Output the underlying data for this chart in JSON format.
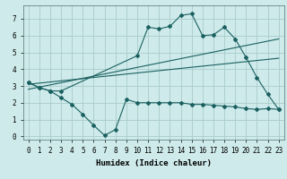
{
  "xlabel": "Humidex (Indice chaleur)",
  "background_color": "#ceeaea",
  "grid_color": "#aacccc",
  "line_color": "#1a6060",
  "xlim": [
    -0.5,
    23.5
  ],
  "ylim": [
    -0.2,
    7.8
  ],
  "xtick_labels": [
    "0",
    "1",
    "2",
    "3",
    "4",
    "5",
    "6",
    "7",
    "8",
    "9",
    "10",
    "11",
    "12",
    "13",
    "14",
    "15",
    "16",
    "17",
    "18",
    "19",
    "20",
    "21",
    "22",
    "23"
  ],
  "ytick_labels": [
    "0",
    "1",
    "2",
    "3",
    "4",
    "5",
    "6",
    "7"
  ],
  "line1_x": [
    0,
    1,
    2,
    3,
    4,
    5,
    6,
    7,
    8,
    9,
    10,
    11,
    12,
    13,
    14,
    15,
    16,
    17,
    18,
    19,
    20,
    21,
    22,
    23
  ],
  "line1_y": [
    3.2,
    2.9,
    2.7,
    2.3,
    1.9,
    1.3,
    0.65,
    0.05,
    0.4,
    2.2,
    2.0,
    2.0,
    2.0,
    2.0,
    2.0,
    1.9,
    1.9,
    1.85,
    1.8,
    1.75,
    1.65,
    1.6,
    1.65,
    1.6
  ],
  "line2_x": [
    0,
    23
  ],
  "line2_y": [
    2.8,
    5.8
  ],
  "line3_x": [
    0,
    23
  ],
  "line3_y": [
    3.1,
    4.65
  ],
  "line4_x": [
    0,
    1,
    2,
    3,
    10,
    11,
    12,
    13,
    14,
    15,
    16,
    17,
    18,
    19,
    20,
    21,
    22,
    23
  ],
  "line4_y": [
    3.2,
    2.9,
    2.7,
    2.7,
    4.8,
    6.5,
    6.4,
    6.55,
    7.2,
    7.3,
    6.0,
    6.05,
    6.5,
    5.8,
    4.7,
    3.5,
    2.5,
    1.6
  ]
}
